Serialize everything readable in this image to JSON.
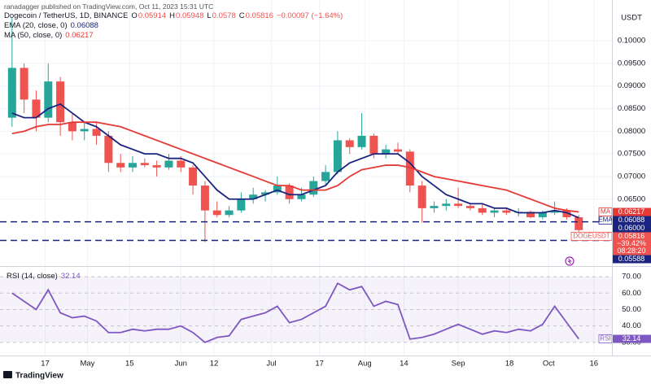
{
  "header": {
    "published": "ranadagger published on TradingView.com, Oct 11, 2023 15:31 UTC",
    "symbol": "Dogecoin / TetherUS, 1D, BINANCE",
    "ohlc": [
      {
        "key": "O",
        "value": 0.05914
      },
      {
        "key": "H",
        "value": 0.05948
      },
      {
        "key": "L",
        "value": 0.0578
      },
      {
        "key": "C",
        "value": 0.05816
      }
    ],
    "change": "−0.00097 (−1.64%)",
    "currency": "USDT",
    "logo": "TradingView"
  },
  "chart_data": [
    {
      "type": "candlestick",
      "up_color": "#26a69a",
      "down_color": "#ef5350",
      "x": [
        "2023-04-06",
        "2023-04-10",
        "2023-04-14",
        "2023-04-18",
        "2023-04-22",
        "2023-04-26",
        "2023-04-30",
        "2023-05-04",
        "2023-05-08",
        "2023-05-12",
        "2023-05-16",
        "2023-05-20",
        "2023-05-24",
        "2023-05-28",
        "2023-06-01",
        "2023-06-05",
        "2023-06-09",
        "2023-06-13",
        "2023-06-17",
        "2023-06-21",
        "2023-06-25",
        "2023-06-29",
        "2023-07-03",
        "2023-07-07",
        "2023-07-11",
        "2023-07-15",
        "2023-07-19",
        "2023-07-23",
        "2023-07-27",
        "2023-07-31",
        "2023-08-04",
        "2023-08-08",
        "2023-08-12",
        "2023-08-16",
        "2023-08-20",
        "2023-08-24",
        "2023-08-28",
        "2023-09-01",
        "2023-09-05",
        "2023-09-09",
        "2023-09-13",
        "2023-09-17",
        "2023-09-21",
        "2023-09-25",
        "2023-09-29",
        "2023-10-03",
        "2023-10-07",
        "2023-10-11"
      ],
      "open": [
        0.083,
        0.094,
        0.087,
        0.083,
        0.091,
        0.082,
        0.08,
        0.0805,
        0.079,
        0.073,
        0.072,
        0.073,
        0.0725,
        0.072,
        0.0735,
        0.072,
        0.068,
        0.0625,
        0.0615,
        0.0625,
        0.065,
        0.066,
        0.0665,
        0.068,
        0.065,
        0.066,
        0.069,
        0.071,
        0.078,
        0.0765,
        0.079,
        0.075,
        0.076,
        0.0755,
        0.068,
        0.063,
        0.0635,
        0.064,
        0.0635,
        0.063,
        0.062,
        0.0625,
        0.062,
        0.0622,
        0.061,
        0.062,
        0.0625,
        0.061
      ],
      "high": [
        0.105,
        0.095,
        0.089,
        0.095,
        0.092,
        0.084,
        0.082,
        0.082,
        0.08,
        0.075,
        0.0745,
        0.074,
        0.0735,
        0.075,
        0.0745,
        0.0725,
        0.069,
        0.0645,
        0.0635,
        0.0665,
        0.0675,
        0.067,
        0.07,
        0.0685,
        0.0675,
        0.07,
        0.0725,
        0.08,
        0.0785,
        0.084,
        0.0795,
        0.077,
        0.0775,
        0.076,
        0.069,
        0.0645,
        0.065,
        0.0675,
        0.064,
        0.064,
        0.063,
        0.063,
        0.063,
        0.0625,
        0.0625,
        0.0645,
        0.063,
        0.0615
      ],
      "low": [
        0.081,
        0.084,
        0.08,
        0.082,
        0.079,
        0.078,
        0.078,
        0.077,
        0.071,
        0.071,
        0.071,
        0.072,
        0.07,
        0.0715,
        0.071,
        0.066,
        0.0555,
        0.061,
        0.061,
        0.062,
        0.064,
        0.0645,
        0.066,
        0.064,
        0.0645,
        0.0655,
        0.068,
        0.0705,
        0.075,
        0.076,
        0.074,
        0.074,
        0.075,
        0.0665,
        0.0598,
        0.062,
        0.0625,
        0.063,
        0.0625,
        0.0615,
        0.061,
        0.0615,
        0.0612,
        0.0608,
        0.0605,
        0.0615,
        0.0605,
        0.0578
      ],
      "close": [
        0.094,
        0.087,
        0.083,
        0.091,
        0.082,
        0.08,
        0.0805,
        0.079,
        0.073,
        0.072,
        0.073,
        0.0725,
        0.072,
        0.0735,
        0.072,
        0.068,
        0.0625,
        0.0615,
        0.0625,
        0.065,
        0.066,
        0.0665,
        0.068,
        0.065,
        0.066,
        0.069,
        0.071,
        0.078,
        0.0765,
        0.079,
        0.075,
        0.076,
        0.0755,
        0.068,
        0.063,
        0.0635,
        0.064,
        0.0635,
        0.063,
        0.062,
        0.0625,
        0.062,
        0.0622,
        0.061,
        0.062,
        0.0625,
        0.061,
        0.05816
      ],
      "series": [
        {
          "name": "EMA (20, close, 0)",
          "tag": "EMA",
          "color": "#1a237e",
          "values": [
            0.084,
            0.083,
            0.083,
            0.085,
            0.086,
            0.084,
            0.082,
            0.081,
            0.079,
            0.077,
            0.076,
            0.075,
            0.075,
            0.074,
            0.074,
            0.073,
            0.07,
            0.067,
            0.065,
            0.065,
            0.065,
            0.066,
            0.067,
            0.066,
            0.066,
            0.067,
            0.068,
            0.071,
            0.073,
            0.074,
            0.075,
            0.075,
            0.075,
            0.073,
            0.07,
            0.068,
            0.066,
            0.065,
            0.064,
            0.064,
            0.063,
            0.063,
            0.062,
            0.062,
            0.062,
            0.0625,
            0.062,
            0.06088
          ]
        },
        {
          "name": "MA (50, close, 0)",
          "tag": "MA",
          "color": "#e53935",
          "values": [
            0.0795,
            0.08,
            0.081,
            0.0815,
            0.0815,
            0.082,
            0.082,
            0.082,
            0.0815,
            0.081,
            0.08,
            0.079,
            0.078,
            0.077,
            0.076,
            0.075,
            0.074,
            0.073,
            0.072,
            0.071,
            0.07,
            0.069,
            0.068,
            0.068,
            0.067,
            0.067,
            0.067,
            0.068,
            0.07,
            0.0715,
            0.072,
            0.0725,
            0.0725,
            0.072,
            0.071,
            0.07,
            0.0695,
            0.069,
            0.0685,
            0.068,
            0.0675,
            0.067,
            0.066,
            0.065,
            0.064,
            0.063,
            0.0625,
            0.06217
          ]
        }
      ],
      "price_badge": {
        "symbol": "DOGEUSDT",
        "change": "−39.42%",
        "countdown": "08:28:20"
      },
      "levels": [
        {
          "value": 0.06,
          "label": "0.06000"
        },
        0.05588
      ],
      "level_color": "#1a237e",
      "xlim": [
        "2023-04-02",
        "2023-10-22"
      ],
      "ylim": [
        0.0504,
        0.109
      ],
      "yticks": [
        {
          "value": 0.1,
          "label": "0.10000"
        },
        {
          "value": 0.095,
          "label": "0.09500"
        },
        {
          "value": 0.09,
          "label": "0.09000"
        },
        {
          "value": 0.085,
          "label": "0.08500"
        },
        {
          "value": 0.08,
          "label": "0.08000"
        },
        {
          "value": 0.075,
          "label": "0.07500"
        },
        {
          "value": 0.07,
          "label": "0.07000"
        },
        {
          "value": 0.065,
          "label": "0.06500"
        }
      ],
      "grid": true
    },
    {
      "type": "line",
      "series": [
        {
          "name": "RSI (14, close)",
          "tag": "RSI",
          "color": "#7e57c2",
          "values": [
            60,
            55,
            50,
            62,
            48,
            45,
            46,
            43,
            36,
            36,
            38,
            37,
            38,
            38,
            40,
            36,
            30,
            33,
            34,
            44,
            46,
            48,
            52,
            42,
            44,
            48,
            52,
            66,
            62,
            64,
            52,
            55,
            53,
            32,
            33,
            35,
            38,
            41,
            38,
            35,
            37,
            36,
            38,
            37,
            41,
            52,
            42,
            32.14
          ]
        }
      ],
      "ylim": [
        22,
        75
      ],
      "yticks": [
        {
          "value": 70,
          "label": "70.00"
        },
        {
          "value": 60,
          "label": "60.00"
        },
        {
          "value": 50,
          "label": "50.00"
        },
        {
          "value": 40,
          "label": "40.00"
        },
        {
          "value": 30,
          "label": "30.00"
        }
      ],
      "xticks": [
        {
          "value": "2023-04-17",
          "label": "17"
        },
        {
          "value": "2023-05-01",
          "label": "May"
        },
        {
          "value": "2023-05-15",
          "label": "15"
        },
        {
          "value": "2023-06-01",
          "label": "Jun"
        },
        {
          "value": "2023-06-12",
          "label": "12"
        },
        {
          "value": "2023-07-01",
          "label": "Jul"
        },
        {
          "value": "2023-07-17",
          "label": "17"
        },
        {
          "value": "2023-08-01",
          "label": "Aug"
        },
        {
          "value": "2023-08-14",
          "label": "14"
        },
        {
          "value": "2023-09-01",
          "label": "Sep"
        },
        {
          "value": "2023-09-18",
          "label": "18"
        },
        {
          "value": "2023-10-01",
          "label": "Oct"
        },
        {
          "value": "2023-10-16",
          "label": "16"
        }
      ]
    }
  ]
}
